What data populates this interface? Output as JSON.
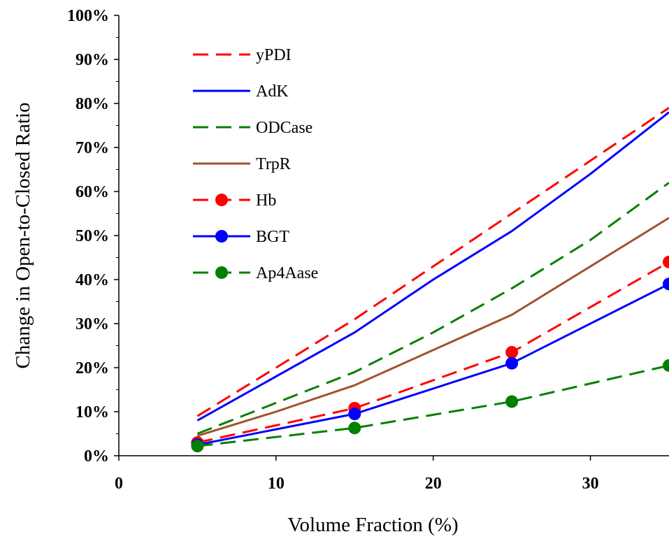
{
  "chart_data": {
    "type": "line",
    "title": "",
    "xlabel": "Volume Fraction (%)",
    "ylabel": "Change in Open-to-Closed Ratio",
    "xlim": [
      0,
      35
    ],
    "ylim": [
      0,
      100
    ],
    "x_ticks": [
      "0",
      "10",
      "20",
      "30"
    ],
    "y_ticks": [
      "0%",
      "10%",
      "20%",
      "30%",
      "40%",
      "50%",
      "60%",
      "70%",
      "80%",
      "90%",
      "100%"
    ],
    "grid": false,
    "legend_position": "top-left",
    "series": [
      {
        "name": "yPDI",
        "color": "#ff0000",
        "style": "dashed",
        "marker": false,
        "x": [
          5,
          10,
          15,
          20,
          25,
          30,
          35
        ],
        "y": [
          9,
          20,
          31,
          43,
          55,
          67,
          79
        ]
      },
      {
        "name": "AdK",
        "color": "#0000ff",
        "style": "solid",
        "marker": false,
        "x": [
          5,
          10,
          15,
          20,
          25,
          30,
          35
        ],
        "y": [
          8,
          18,
          28,
          40,
          51,
          64,
          78
        ]
      },
      {
        "name": "ODCase",
        "color": "#008000",
        "style": "dashed",
        "marker": false,
        "x": [
          5,
          10,
          15,
          20,
          25,
          30,
          35
        ],
        "y": [
          5,
          12,
          19,
          28,
          38,
          49,
          62
        ]
      },
      {
        "name": "TrpR",
        "color": "#a0522d",
        "style": "solid",
        "marker": false,
        "x": [
          5,
          10,
          15,
          20,
          25,
          30,
          35
        ],
        "y": [
          4.5,
          10,
          16,
          24,
          32,
          43,
          54
        ]
      },
      {
        "name": "Hb",
        "color": "#ff0000",
        "style": "dashed",
        "marker": true,
        "x": [
          5,
          15,
          25,
          35
        ],
        "y": [
          3,
          10.8,
          23.5,
          44
        ]
      },
      {
        "name": "BGT",
        "color": "#0000ff",
        "style": "solid",
        "marker": true,
        "x": [
          5,
          15,
          25,
          35
        ],
        "y": [
          2.5,
          9.5,
          21,
          39
        ]
      },
      {
        "name": "Ap4Aase",
        "color": "#008000",
        "style": "dashed",
        "marker": true,
        "x": [
          5,
          15,
          25,
          35
        ],
        "y": [
          2.2,
          6.3,
          12.3,
          20.5
        ]
      }
    ]
  }
}
